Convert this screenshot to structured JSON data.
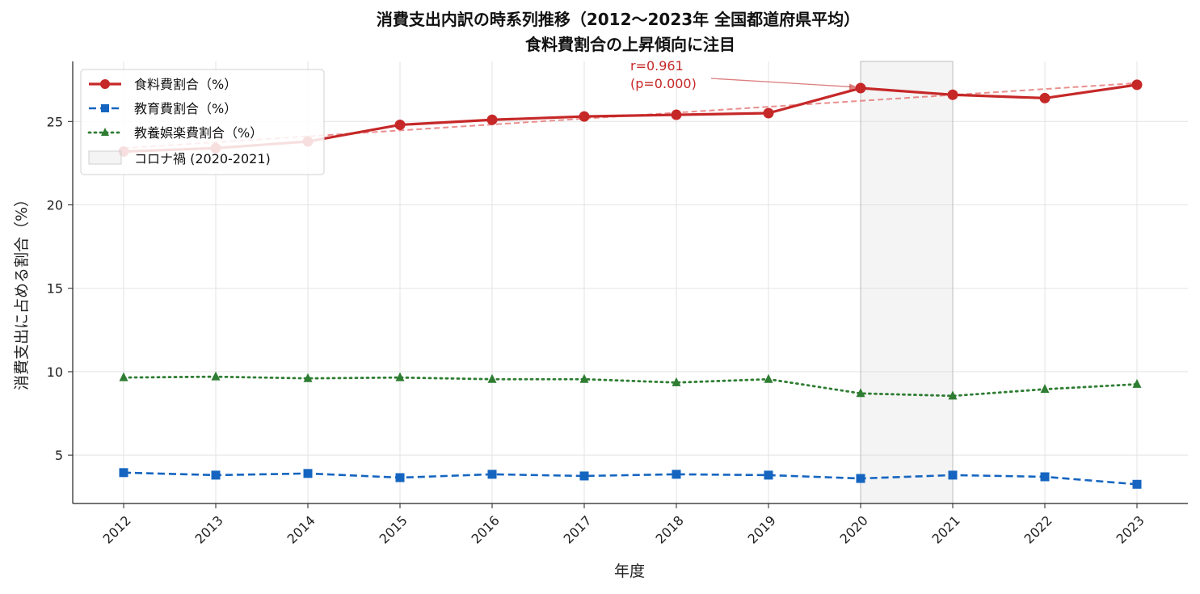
{
  "chart_data": {
    "type": "line",
    "title": "消費支出内訳の時系列推移（2012〜2023年 全国都道府県平均）",
    "subtitle": "食料費割合の上昇傾向に注目",
    "xlabel": "年度",
    "ylabel": "消費支出に占める割合（%）",
    "categories": [
      "2012",
      "2013",
      "2014",
      "2015",
      "2016",
      "2017",
      "2018",
      "2019",
      "2020",
      "2021",
      "2022",
      "2023"
    ],
    "ylim": [
      2.1,
      28.6
    ],
    "yticks": [
      5,
      10,
      15,
      20,
      25
    ],
    "grid": true,
    "legend_position": "top-left",
    "series": [
      {
        "name": "食料費割合（%）",
        "color": "#c62828",
        "style": "solid",
        "marker": "circle",
        "values": [
          23.2,
          23.4,
          23.8,
          24.8,
          25.1,
          25.3,
          25.4,
          25.5,
          27.0,
          26.6,
          26.4,
          27.2
        ]
      },
      {
        "name": "教育費割合（%）",
        "color": "#1565c0",
        "style": "dashed",
        "marker": "square",
        "values": [
          3.95,
          3.8,
          3.9,
          3.65,
          3.85,
          3.75,
          3.85,
          3.8,
          3.6,
          3.8,
          3.7,
          3.25
        ]
      },
      {
        "name": "教養娯楽費割合（%）",
        "color": "#2e7d32",
        "style": "dotted",
        "marker": "triangle",
        "values": [
          9.65,
          9.7,
          9.6,
          9.65,
          9.55,
          9.55,
          9.35,
          9.55,
          8.7,
          8.55,
          8.95,
          9.25
        ]
      }
    ],
    "trendline": {
      "series": "食料費割合（%）",
      "start": [
        2012,
        23.4
      ],
      "end": [
        2023,
        27.3
      ]
    },
    "shaded_region": {
      "label": "コロナ禍 (2020-2021)",
      "x_start": 2020,
      "x_end": 2021,
      "color": "#d9d9d9"
    },
    "annotation": {
      "line1": "r=0.961",
      "line2": "(p=0.000)",
      "target_x": 2020,
      "target_y": 27.0,
      "color": "#c62828"
    }
  }
}
